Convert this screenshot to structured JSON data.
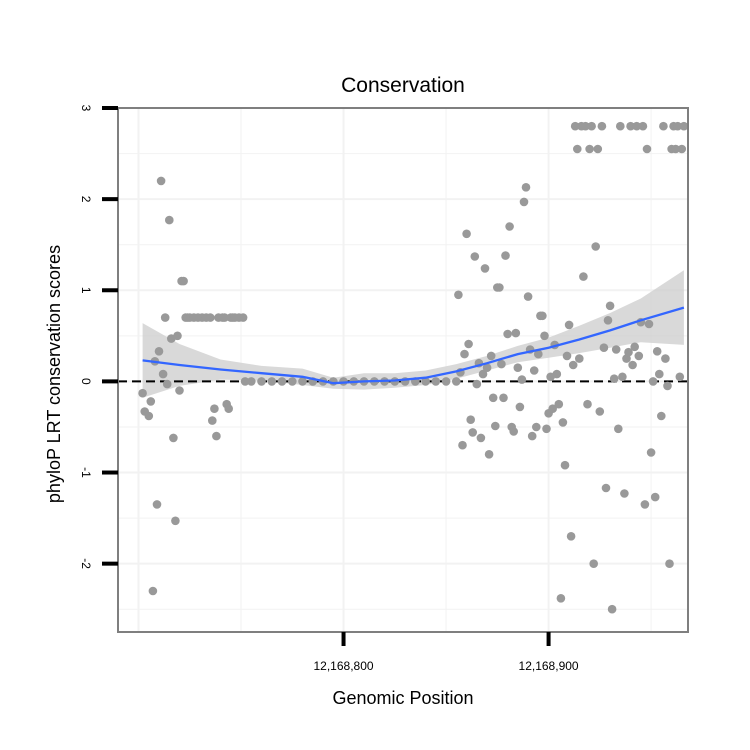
{
  "chart_data": {
    "type": "scatter",
    "title": "Conservation",
    "xlabel": "Genomic Position",
    "ylabel": "phyloP LRT conservation scores",
    "xlim": [
      12168690,
      12168968
    ],
    "ylim": [
      -2.75,
      3.0
    ],
    "x_ticks": [
      {
        "value": 12168800,
        "label": "12,168,800"
      },
      {
        "value": 12168900,
        "label": "12,168,900"
      }
    ],
    "y_ticks": [
      {
        "value": -2,
        "label": "-2"
      },
      {
        "value": -1,
        "label": "-1"
      },
      {
        "value": 0,
        "label": "0"
      },
      {
        "value": 1,
        "label": "1"
      },
      {
        "value": 2,
        "label": "2"
      },
      {
        "value": 3,
        "label": "3"
      }
    ],
    "grid": true,
    "reference_line": {
      "y": 0,
      "style": "dashed"
    },
    "colors": {
      "points": "#999999",
      "smooth": "#3366ff",
      "band": "#cccccc",
      "frame": "#7f7f7f"
    },
    "points": [
      [
        12168702,
        -0.13
      ],
      [
        12168703,
        -0.33
      ],
      [
        12168705,
        -0.38
      ],
      [
        12168706,
        -0.22
      ],
      [
        12168707,
        -2.3
      ],
      [
        12168708,
        0.22
      ],
      [
        12168709,
        -1.35
      ],
      [
        12168710,
        0.33
      ],
      [
        12168711,
        2.2
      ],
      [
        12168712,
        0.08
      ],
      [
        12168713,
        0.7
      ],
      [
        12168714,
        -0.03
      ],
      [
        12168715,
        1.77
      ],
      [
        12168716,
        0.47
      ],
      [
        12168717,
        -0.62
      ],
      [
        12168718,
        -1.53
      ],
      [
        12168719,
        0.5
      ],
      [
        12168720,
        -0.1
      ],
      [
        12168721,
        1.1
      ],
      [
        12168722,
        1.1
      ],
      [
        12168723,
        0.7
      ],
      [
        12168724,
        0.7
      ],
      [
        12168725,
        0.7
      ],
      [
        12168727,
        0.7
      ],
      [
        12168729,
        0.7
      ],
      [
        12168731,
        0.7
      ],
      [
        12168733,
        0.7
      ],
      [
        12168735,
        0.7
      ],
      [
        12168736,
        -0.43
      ],
      [
        12168737,
        -0.3
      ],
      [
        12168738,
        -0.6
      ],
      [
        12168739,
        0.7
      ],
      [
        12168741,
        0.7
      ],
      [
        12168742,
        0.7
      ],
      [
        12168743,
        -0.25
      ],
      [
        12168744,
        -0.3
      ],
      [
        12168745,
        0.7
      ],
      [
        12168746,
        0.7
      ],
      [
        12168747,
        0.7
      ],
      [
        12168749,
        0.7
      ],
      [
        12168751,
        0.7
      ],
      [
        12168752,
        0.0
      ],
      [
        12168755,
        0.0
      ],
      [
        12168760,
        0.0
      ],
      [
        12168765,
        0.0
      ],
      [
        12168770,
        0.0
      ],
      [
        12168775,
        0.0
      ],
      [
        12168780,
        0.0
      ],
      [
        12168785,
        0.0
      ],
      [
        12168790,
        0.0
      ],
      [
        12168795,
        0.0
      ],
      [
        12168800,
        0.0
      ],
      [
        12168805,
        0.0
      ],
      [
        12168810,
        0.0
      ],
      [
        12168815,
        0.0
      ],
      [
        12168820,
        0.0
      ],
      [
        12168825,
        0.0
      ],
      [
        12168830,
        0.0
      ],
      [
        12168835,
        0.0
      ],
      [
        12168840,
        0.0
      ],
      [
        12168845,
        0.0
      ],
      [
        12168850,
        0.0
      ],
      [
        12168855,
        0.0
      ],
      [
        12168856,
        0.95
      ],
      [
        12168857,
        0.1
      ],
      [
        12168858,
        -0.7
      ],
      [
        12168859,
        0.3
      ],
      [
        12168860,
        1.62
      ],
      [
        12168861,
        0.41
      ],
      [
        12168862,
        -0.42
      ],
      [
        12168863,
        -0.56
      ],
      [
        12168864,
        1.37
      ],
      [
        12168865,
        -0.03
      ],
      [
        12168866,
        0.2
      ],
      [
        12168867,
        -0.62
      ],
      [
        12168868,
        0.08
      ],
      [
        12168869,
        1.24
      ],
      [
        12168870,
        0.15
      ],
      [
        12168871,
        -0.8
      ],
      [
        12168872,
        0.28
      ],
      [
        12168873,
        -0.18
      ],
      [
        12168874,
        -0.49
      ],
      [
        12168875,
        1.03
      ],
      [
        12168876,
        1.03
      ],
      [
        12168877,
        0.19
      ],
      [
        12168878,
        -0.18
      ],
      [
        12168879,
        1.38
      ],
      [
        12168880,
        0.52
      ],
      [
        12168881,
        1.7
      ],
      [
        12168882,
        -0.5
      ],
      [
        12168883,
        -0.55
      ],
      [
        12168884,
        0.53
      ],
      [
        12168885,
        0.15
      ],
      [
        12168886,
        -0.28
      ],
      [
        12168887,
        0.02
      ],
      [
        12168888,
        1.97
      ],
      [
        12168889,
        2.13
      ],
      [
        12168890,
        0.93
      ],
      [
        12168891,
        0.35
      ],
      [
        12168892,
        -0.6
      ],
      [
        12168893,
        0.12
      ],
      [
        12168894,
        -0.5
      ],
      [
        12168895,
        0.3
      ],
      [
        12168896,
        0.72
      ],
      [
        12168897,
        0.72
      ],
      [
        12168898,
        0.5
      ],
      [
        12168899,
        -0.52
      ],
      [
        12168900,
        -0.35
      ],
      [
        12168901,
        0.05
      ],
      [
        12168902,
        -0.3
      ],
      [
        12168903,
        0.4
      ],
      [
        12168904,
        0.08
      ],
      [
        12168905,
        -0.25
      ],
      [
        12168906,
        -2.38
      ],
      [
        12168907,
        -0.45
      ],
      [
        12168908,
        -0.92
      ],
      [
        12168909,
        0.28
      ],
      [
        12168910,
        0.62
      ],
      [
        12168911,
        -1.7
      ],
      [
        12168912,
        0.18
      ],
      [
        12168913,
        2.8
      ],
      [
        12168914,
        2.55
      ],
      [
        12168915,
        0.25
      ],
      [
        12168916,
        2.8
      ],
      [
        12168917,
        1.15
      ],
      [
        12168918,
        2.8
      ],
      [
        12168919,
        -0.25
      ],
      [
        12168920,
        2.55
      ],
      [
        12168921,
        2.8
      ],
      [
        12168922,
        -2.0
      ],
      [
        12168923,
        1.48
      ],
      [
        12168924,
        2.55
      ],
      [
        12168925,
        -0.33
      ],
      [
        12168926,
        2.8
      ],
      [
        12168927,
        0.37
      ],
      [
        12168928,
        -1.17
      ],
      [
        12168929,
        0.67
      ],
      [
        12168930,
        0.83
      ],
      [
        12168931,
        -2.5
      ],
      [
        12168932,
        0.03
      ],
      [
        12168933,
        0.35
      ],
      [
        12168934,
        -0.52
      ],
      [
        12168935,
        2.8
      ],
      [
        12168936,
        0.05
      ],
      [
        12168937,
        -1.23
      ],
      [
        12168938,
        0.25
      ],
      [
        12168939,
        0.32
      ],
      [
        12168940,
        2.8
      ],
      [
        12168941,
        0.18
      ],
      [
        12168942,
        0.38
      ],
      [
        12168943,
        2.8
      ],
      [
        12168944,
        0.28
      ],
      [
        12168945,
        0.65
      ],
      [
        12168946,
        2.8
      ],
      [
        12168947,
        -1.35
      ],
      [
        12168948,
        2.55
      ],
      [
        12168949,
        0.63
      ],
      [
        12168950,
        -0.78
      ],
      [
        12168951,
        0.0
      ],
      [
        12168952,
        -1.27
      ],
      [
        12168953,
        0.33
      ],
      [
        12168954,
        0.08
      ],
      [
        12168955,
        -0.38
      ],
      [
        12168956,
        2.8
      ],
      [
        12168957,
        0.25
      ],
      [
        12168958,
        -0.05
      ],
      [
        12168959,
        -2.0
      ],
      [
        12168960,
        2.55
      ],
      [
        12168961,
        2.8
      ],
      [
        12168962,
        2.55
      ],
      [
        12168963,
        2.8
      ],
      [
        12168964,
        0.05
      ],
      [
        12168965,
        2.55
      ],
      [
        12168966,
        2.8
      ]
    ],
    "smooth": {
      "x": [
        12168702,
        12168720,
        12168740,
        12168760,
        12168780,
        12168795,
        12168810,
        12168825,
        12168840,
        12168855,
        12168870,
        12168885,
        12168900,
        12168915,
        12168930,
        12168945,
        12168966
      ],
      "y": [
        0.23,
        0.18,
        0.13,
        0.09,
        0.05,
        -0.02,
        0.0,
        0.01,
        0.04,
        0.11,
        0.2,
        0.3,
        0.37,
        0.46,
        0.56,
        0.67,
        0.81
      ],
      "lower": [
        -0.18,
        -0.05,
        0.02,
        0.01,
        -0.04,
        -0.08,
        -0.09,
        -0.07,
        -0.04,
        0.03,
        0.12,
        0.21,
        0.26,
        0.31,
        0.37,
        0.43,
        0.4
      ],
      "upper": [
        0.64,
        0.41,
        0.24,
        0.17,
        0.14,
        0.04,
        0.09,
        0.09,
        0.12,
        0.19,
        0.28,
        0.39,
        0.48,
        0.61,
        0.75,
        0.91,
        1.22
      ]
    }
  }
}
